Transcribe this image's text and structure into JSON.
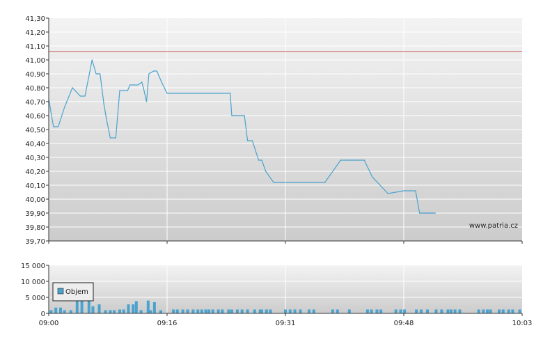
{
  "colors": {
    "line": "#4aa3cf",
    "bar": "#4aa3cf",
    "reference": "#c0504d",
    "grid": "#ffffff",
    "panel_top": "#f3f3f3",
    "panel_bottom": "#cccccc",
    "axis": "#333333"
  },
  "chart_data": [
    {
      "type": "line",
      "title": "",
      "xlabel": "",
      "ylabel": "",
      "ylim": [
        39.7,
        41.3
      ],
      "y_ticks": [
        "39,70",
        "39,80",
        "39,90",
        "40,00",
        "40,10",
        "40,20",
        "40,30",
        "40,40",
        "40,50",
        "40,60",
        "40,70",
        "40,80",
        "40,90",
        "41,00",
        "41,10",
        "41,20",
        "41,30"
      ],
      "reference_line": 41.06,
      "grid": true,
      "watermark": "www.patria.cz",
      "x_unit": "minutes after 09:00",
      "series": [
        {
          "x": [
            0,
            0.6,
            1.2,
            2,
            3,
            4,
            4.6,
            5.5,
            6,
            6.5,
            7,
            7.3,
            7.8,
            8.5,
            9,
            9.5,
            10,
            10.3,
            10.7,
            11.3,
            11.8,
            12,
            12.4,
            12.7,
            13.3,
            13.7,
            14.3,
            15,
            16.4,
            23,
            23.2,
            24.8,
            25.2,
            25.8,
            26.6,
            27,
            27.5,
            28.5,
            29.6,
            31,
            35,
            37,
            40,
            41,
            43,
            45,
            46.5,
            47,
            48,
            49
          ],
          "y": [
            40.72,
            40.52,
            40.52,
            40.66,
            40.8,
            40.74,
            40.74,
            41.0,
            40.9,
            40.9,
            40.68,
            40.58,
            40.44,
            40.44,
            40.78,
            40.78,
            40.78,
            40.82,
            40.82,
            40.82,
            40.84,
            40.8,
            40.7,
            40.9,
            40.92,
            40.92,
            40.84,
            40.76,
            40.76,
            40.76,
            40.6,
            40.6,
            40.42,
            40.42,
            40.28,
            40.28,
            40.2,
            40.12,
            40.12,
            40.12,
            40.12,
            40.28,
            40.28,
            40.16,
            40.04,
            40.06,
            40.06,
            39.9,
            39.9,
            39.9
          ]
        }
      ]
    },
    {
      "type": "bar",
      "title": "",
      "xlabel": "",
      "ylabel": "",
      "ylim": [
        0,
        15000
      ],
      "y_ticks": [
        "0",
        "5 000",
        "10 000",
        "15 000"
      ],
      "x_ticks": [
        "09:00",
        "09:16",
        "09:31",
        "09:48",
        "10:03"
      ],
      "x_tick_values": [
        0,
        15,
        30,
        45,
        60
      ],
      "legend": "Objem",
      "grid": true,
      "series": [
        {
          "name": "Objem",
          "x": [
            0.3,
            0.9,
            1.5,
            2,
            2.8,
            3.6,
            4.2,
            5.1,
            5.6,
            6.4,
            7.2,
            7.8,
            8.3,
            9,
            9.5,
            10.1,
            10.7,
            11.1,
            11.7,
            12.6,
            12.9,
            13.4,
            14.2,
            15.8,
            16.3,
            17,
            17.6,
            18.3,
            18.9,
            19.4,
            19.9,
            20.3,
            20.8,
            21.5,
            22,
            22.8,
            23.2,
            23.9,
            24.5,
            25.2,
            26.1,
            26.8,
            27,
            27.6,
            28.1,
            30,
            30.6,
            31.2,
            31.9,
            33,
            33.6,
            36,
            36.6,
            38.1,
            40.4,
            40.9,
            41.6,
            42.1,
            44,
            44.6,
            45.1,
            46.6,
            47.2,
            48,
            49.1,
            49.8,
            50.6,
            51,
            51.5,
            52.1,
            54.5,
            55.1,
            55.6,
            56,
            57.1,
            57.6,
            58.3,
            58.8,
            59.7
          ],
          "values": [
            1000,
            1800,
            1800,
            1000,
            1000,
            4700,
            4700,
            4700,
            2200,
            2800,
            1000,
            1000,
            1000,
            1200,
            1200,
            2800,
            2800,
            3800,
            1000,
            4000,
            1000,
            3500,
            1000,
            1200,
            1200,
            1200,
            1200,
            1200,
            1200,
            1200,
            1200,
            1200,
            1200,
            1200,
            1200,
            1200,
            1200,
            1200,
            1200,
            1200,
            1200,
            1200,
            1200,
            1200,
            1200,
            1200,
            1200,
            1200,
            1200,
            1200,
            1200,
            1200,
            1200,
            1200,
            1200,
            1200,
            1200,
            1200,
            1200,
            1200,
            1200,
            1200,
            1200,
            1200,
            1200,
            1200,
            1200,
            1200,
            1200,
            1200,
            1200,
            1200,
            1200,
            1200,
            1200,
            1200,
            1200,
            1200,
            1200
          ]
        }
      ]
    }
  ]
}
